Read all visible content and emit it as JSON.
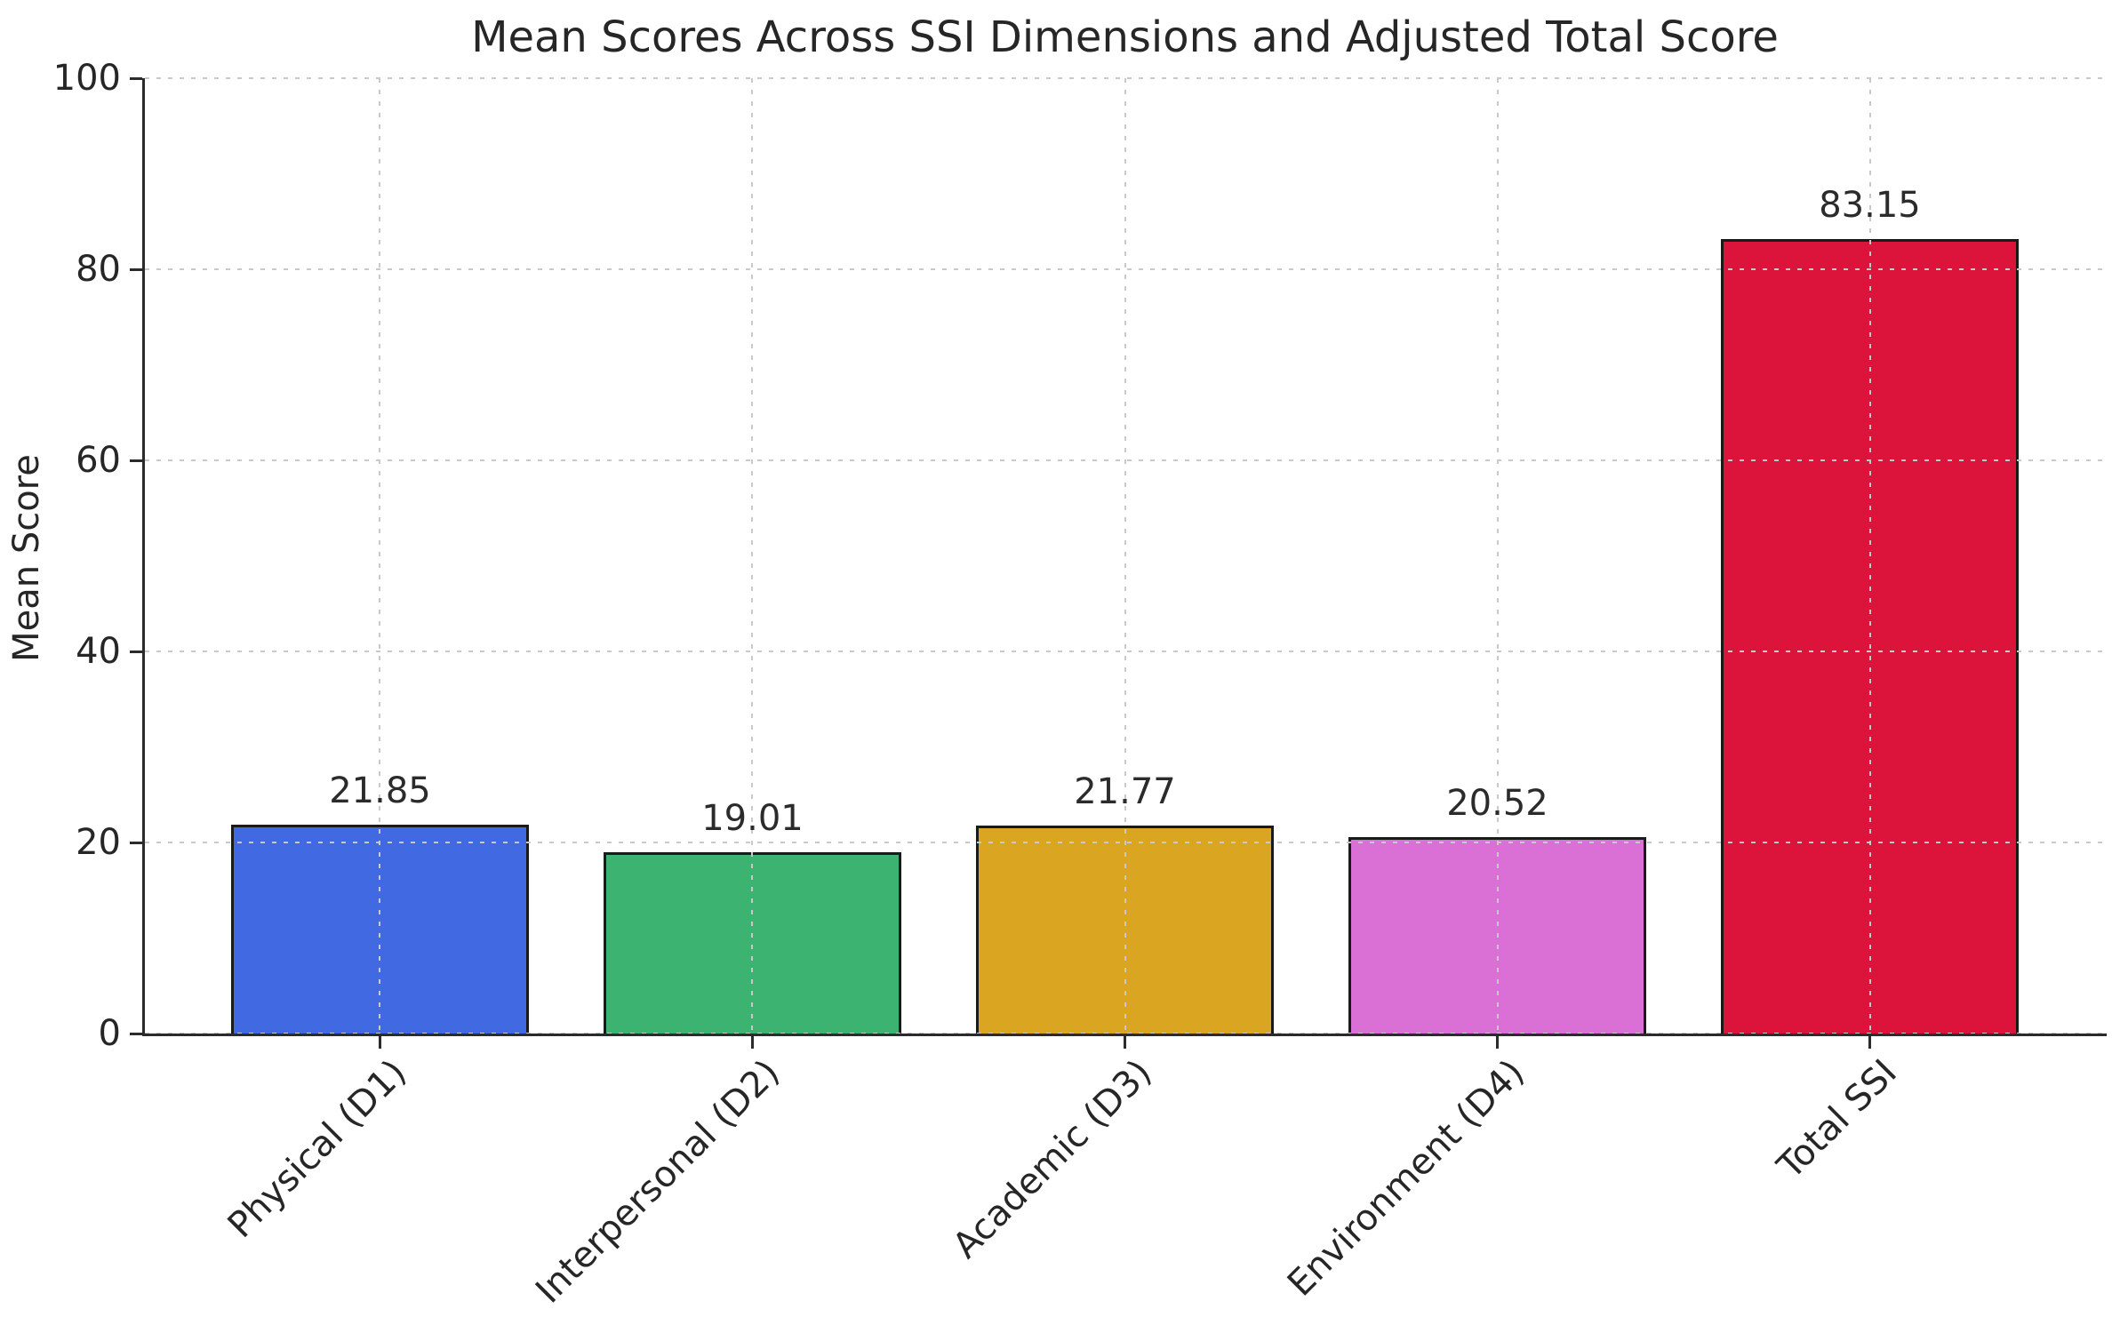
{
  "figure": {
    "background_color": "#ffffff",
    "text_color": "#262626",
    "spine_color": "#2b2b2b",
    "grid_color": "#c9c9c9",
    "bar_edge_color": "#1a1a1a"
  },
  "chart_data": {
    "type": "bar",
    "title": "Mean Scores Across SSI Dimensions and Adjusted Total Score",
    "xlabel": "",
    "ylabel": "Mean Score",
    "categories": [
      "Physical (D1)",
      "Interpersonal (D2)",
      "Academic (D3)",
      "Environment (D4)",
      "Total SSI"
    ],
    "values": [
      21.85,
      19.01,
      21.77,
      20.52,
      83.15
    ],
    "value_labels": [
      "21.85",
      "19.01",
      "21.77",
      "20.52",
      "83.15"
    ],
    "bar_colors": [
      "#4169E1",
      "#3CB371",
      "#DAA520",
      "#DA70D6",
      "#DC143C"
    ],
    "ylim": [
      0,
      100
    ],
    "yticks": [
      0,
      20,
      40,
      60,
      80,
      100
    ],
    "ytick_labels": [
      "0",
      "20",
      "40",
      "60",
      "80",
      "100"
    ],
    "grid": "dotted gridlines horizontal at yticks and vertical at bar centers, drawn above bars",
    "xtick_label_rotation_deg": 45,
    "legend": "none"
  }
}
